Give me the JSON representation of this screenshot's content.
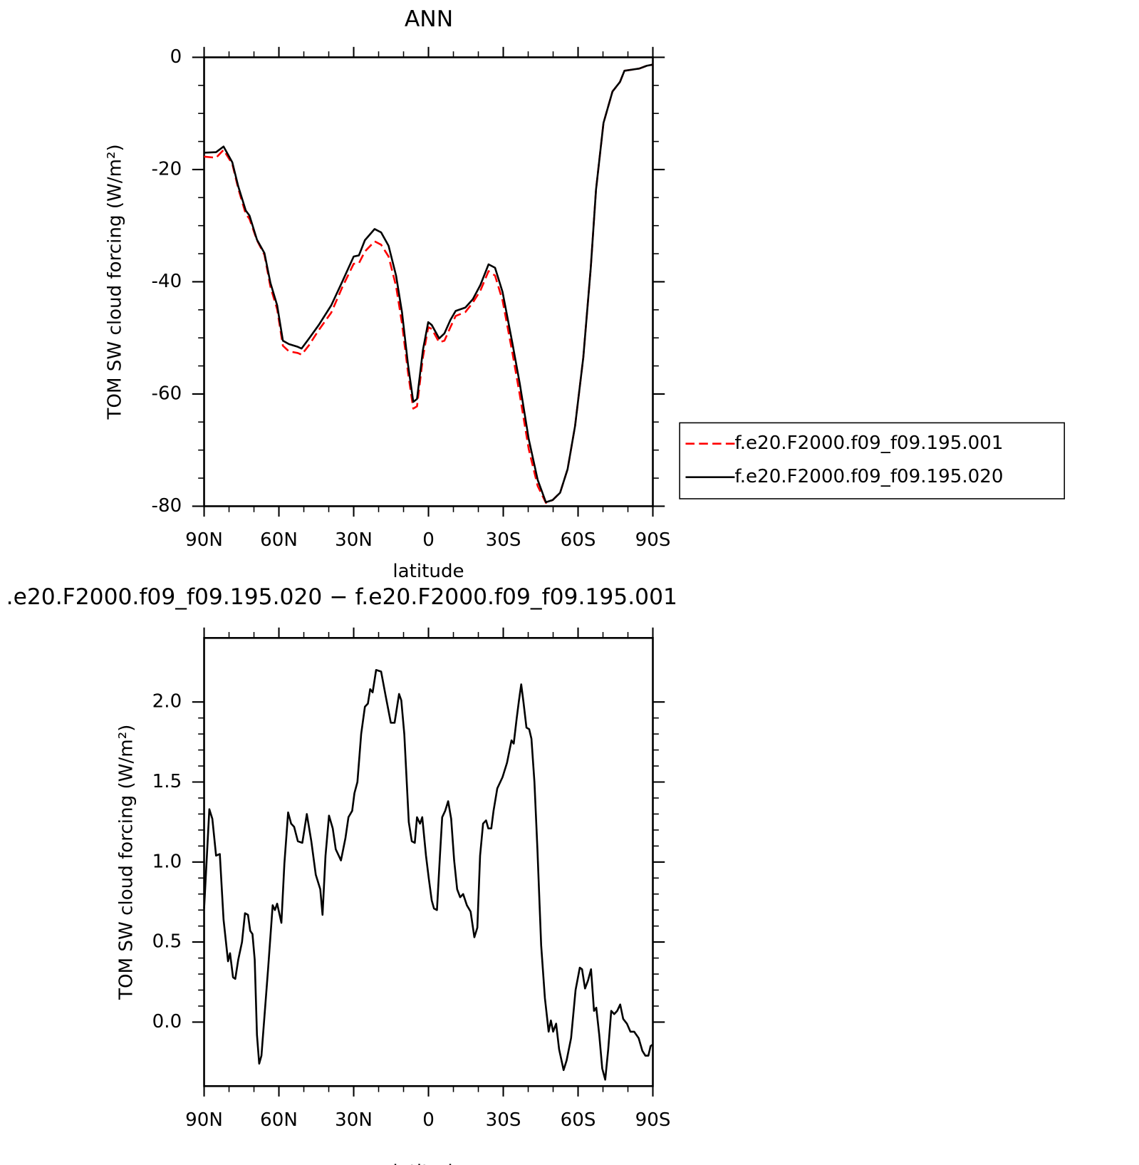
{
  "chart_data": [
    {
      "type": "line",
      "title": "ANN",
      "xlabel": "latitude",
      "ylabel": "TOM SW cloud forcing (W/m²)",
      "x": [
        90,
        85.2,
        82.2,
        78.7,
        76.3,
        73.3,
        71.8,
        68.8,
        65.8,
        63.4,
        60.7,
        58.4,
        56,
        52.4,
        50.9,
        47.9,
        44,
        39,
        34.5,
        30,
        27.9,
        25.5,
        21.6,
        19,
        16,
        13,
        10.6,
        8.2,
        6.1,
        4.6,
        2.2,
        0.1,
        -1.3,
        -4.3,
        -6.4,
        -8.8,
        -10.9,
        -14.8,
        -17.8,
        -20.8,
        -24.1,
        -26.7,
        -29.7,
        -33.6,
        -36.6,
        -40.2,
        -43.8,
        -47.1,
        -49.8,
        -52.8,
        -55.8,
        -58.8,
        -62.1,
        -65.1,
        -67.2,
        -70.2,
        -73.8,
        -76.8,
        -78.6,
        -84.6,
        -87.6,
        -90
      ],
      "series": [
        {
          "name": "f.e20.F2000.f09_f09.195.001",
          "color": "#ff0000",
          "linestyle": "dashed",
          "values": [
            -17.7,
            -17.9,
            -16.5,
            -19.0,
            -23.4,
            -27.9,
            -28.8,
            -32.6,
            -35.2,
            -40.9,
            -44.9,
            -51.4,
            -52.4,
            -52.7,
            -53.0,
            -51.3,
            -48.6,
            -45.5,
            -40.9,
            -36.8,
            -36.7,
            -34.6,
            -32.8,
            -33.4,
            -35.5,
            -40.8,
            -47.5,
            -56.2,
            -62.6,
            -62.2,
            -53.4,
            -48.1,
            -48.4,
            -50.8,
            -50.5,
            -48.1,
            -46.1,
            -45.4,
            -43.7,
            -41.6,
            -38.1,
            -38.9,
            -43.3,
            -52.5,
            -60.1,
            -69.8,
            -76.4,
            -79.4,
            -78.9,
            -77.6,
            -73.4,
            -65.7,
            -53.5,
            -37.5,
            -23.6,
            -11.7,
            -6.1,
            -4.4,
            -2.4,
            -2.0,
            -1.5,
            -1.3
          ]
        },
        {
          "name": "f.e20.F2000.f09_f09.195.020",
          "color": "#000000",
          "linestyle": "solid",
          "values": [
            -17.0,
            -16.9,
            -15.9,
            -18.7,
            -23.0,
            -27.3,
            -28.2,
            -32.5,
            -34.9,
            -40.2,
            -44.2,
            -50.5,
            -51.1,
            -51.6,
            -51.9,
            -50.1,
            -47.7,
            -44.2,
            -39.9,
            -35.5,
            -35.3,
            -32.6,
            -30.6,
            -31.2,
            -33.6,
            -38.9,
            -45.5,
            -54.8,
            -61.4,
            -60.9,
            -52.1,
            -47.2,
            -47.7,
            -50.1,
            -49.2,
            -46.8,
            -45.2,
            -44.6,
            -43.1,
            -40.6,
            -36.9,
            -37.5,
            -41.8,
            -50.8,
            -58.1,
            -68.0,
            -75.3,
            -79.3,
            -78.9,
            -77.6,
            -73.4,
            -65.7,
            -53.5,
            -37.5,
            -23.6,
            -11.7,
            -6.1,
            -4.4,
            -2.4,
            -2.0,
            -1.5,
            -1.3
          ]
        }
      ],
      "xlim": [
        90,
        -90
      ],
      "xticks": [
        {
          "value": 90,
          "label": "90N"
        },
        {
          "value": 60,
          "label": "60N"
        },
        {
          "value": 30,
          "label": "30N"
        },
        0,
        {
          "value": -30,
          "label": "30S"
        },
        {
          "value": -60,
          "label": "60S"
        },
        {
          "value": -90,
          "label": "90S"
        }
      ],
      "ylim": [
        -80,
        0
      ],
      "yticks": [
        -80,
        -60,
        -40,
        -20,
        0
      ],
      "legend": "outside-right"
    },
    {
      "type": "line",
      "title": ".e20.F2000.f09_f09.195.020 − f.e20.F2000.f09_f09.195.001",
      "xlabel": "latitude",
      "ylabel": "TOM SW cloud forcing (W/m²)",
      "x": [
        90.0,
        87.9,
        86.7,
        85.2,
        83.7,
        82.2,
        80.4,
        79.6,
        78.4,
        77.5,
        76.3,
        74.8,
        73.6,
        72.4,
        71.5,
        70.6,
        69.7,
        68.8,
        67.9,
        67.0,
        64.3,
        62.5,
        61.6,
        60.7,
        59.0,
        57.8,
        56.3,
        55.1,
        53.9,
        52.4,
        50.6,
        48.8,
        47.0,
        45.2,
        43.4,
        42.5,
        41.3,
        39.9,
        38.4,
        37.2,
        35.1,
        33.3,
        32.1,
        30.6,
        29.7,
        28.5,
        27.0,
        25.5,
        24.3,
        23.4,
        22.4,
        21.0,
        19.0,
        17.2,
        15.1,
        13.6,
        11.8,
        10.9,
        9.7,
        7.9,
        6.7,
        5.5,
        4.6,
        3.4,
        2.5,
        1.0,
        -0.1,
        -1.3,
        -2.2,
        -3.4,
        -4.6,
        -5.5,
        -6.7,
        -7.9,
        -9.1,
        -10.3,
        -11.5,
        -12.7,
        -13.9,
        -15.4,
        -16.9,
        -18.4,
        -19.6,
        -20.7,
        -21.9,
        -23.1,
        -24.0,
        -25.2,
        -26.1,
        -27.6,
        -29.7,
        -31.5,
        -33.3,
        -34.2,
        -35.4,
        -36.3,
        -37.2,
        -38.1,
        -39.3,
        -40.4,
        -41.3,
        -42.5,
        -43.7,
        -45.2,
        -46.7,
        -48.2,
        -49.1,
        -50.0,
        -51.2,
        -52.4,
        -54.2,
        -55.4,
        -57.2,
        -59.0,
        -60.7,
        -61.6,
        -62.8,
        -64.0,
        -65.2,
        -66.4,
        -67.3,
        -68.5,
        -69.7,
        -70.9,
        -72.1,
        -73.3,
        -74.5,
        -75.7,
        -76.9,
        -78.1,
        -79.6,
        -81.0,
        -82.5,
        -84.3,
        -85.8,
        -87.0,
        -88.2,
        -89.1,
        -90.0
      ],
      "values": [
        0.71,
        1.33,
        1.27,
        1.04,
        1.05,
        0.64,
        0.38,
        0.43,
        0.28,
        0.27,
        0.39,
        0.5,
        0.68,
        0.67,
        0.57,
        0.55,
        0.39,
        -0.08,
        -0.26,
        -0.21,
        0.34,
        0.73,
        0.7,
        0.74,
        0.62,
        0.99,
        1.31,
        1.24,
        1.22,
        1.13,
        1.12,
        1.3,
        1.13,
        0.92,
        0.83,
        0.67,
        1.04,
        1.29,
        1.21,
        1.08,
        1.01,
        1.15,
        1.28,
        1.32,
        1.43,
        1.5,
        1.8,
        1.97,
        1.99,
        2.08,
        2.06,
        2.2,
        2.19,
        2.04,
        1.87,
        1.87,
        2.05,
        2.01,
        1.8,
        1.25,
        1.13,
        1.12,
        1.28,
        1.24,
        1.28,
        1.04,
        0.9,
        0.76,
        0.71,
        0.7,
        1.04,
        1.28,
        1.32,
        1.38,
        1.27,
        1.01,
        0.83,
        0.78,
        0.8,
        0.73,
        0.69,
        0.53,
        0.59,
        1.04,
        1.24,
        1.26,
        1.21,
        1.21,
        1.32,
        1.46,
        1.53,
        1.62,
        1.76,
        1.74,
        1.9,
        2.01,
        2.11,
        2.0,
        1.84,
        1.83,
        1.77,
        1.5,
        1.08,
        0.48,
        0.15,
        -0.06,
        0.01,
        -0.06,
        -0.01,
        -0.17,
        -0.3,
        -0.24,
        -0.1,
        0.2,
        0.34,
        0.33,
        0.21,
        0.26,
        0.33,
        0.07,
        0.09,
        -0.08,
        -0.29,
        -0.36,
        -0.17,
        0.07,
        0.05,
        0.07,
        0.11,
        0.02,
        -0.01,
        -0.06,
        -0.06,
        -0.1,
        -0.18,
        -0.21,
        -0.21,
        -0.15,
        -0.14
      ],
      "color": "#000000",
      "xlim": [
        90,
        -90
      ],
      "xticks": [
        {
          "value": 90,
          "label": "90N"
        },
        {
          "value": 60,
          "label": "60N"
        },
        {
          "value": 30,
          "label": "30N"
        },
        0,
        {
          "value": -30,
          "label": "30S"
        },
        {
          "value": -60,
          "label": "60S"
        },
        {
          "value": -90,
          "label": "90S"
        }
      ],
      "ylim": [
        -0.4,
        2.4
      ],
      "yticks": [
        {
          "value": 0,
          "label": "0.0"
        },
        0.5,
        {
          "value": 1,
          "label": "1.0"
        },
        1.5,
        {
          "value": 2,
          "label": "2.0"
        }
      ]
    }
  ]
}
